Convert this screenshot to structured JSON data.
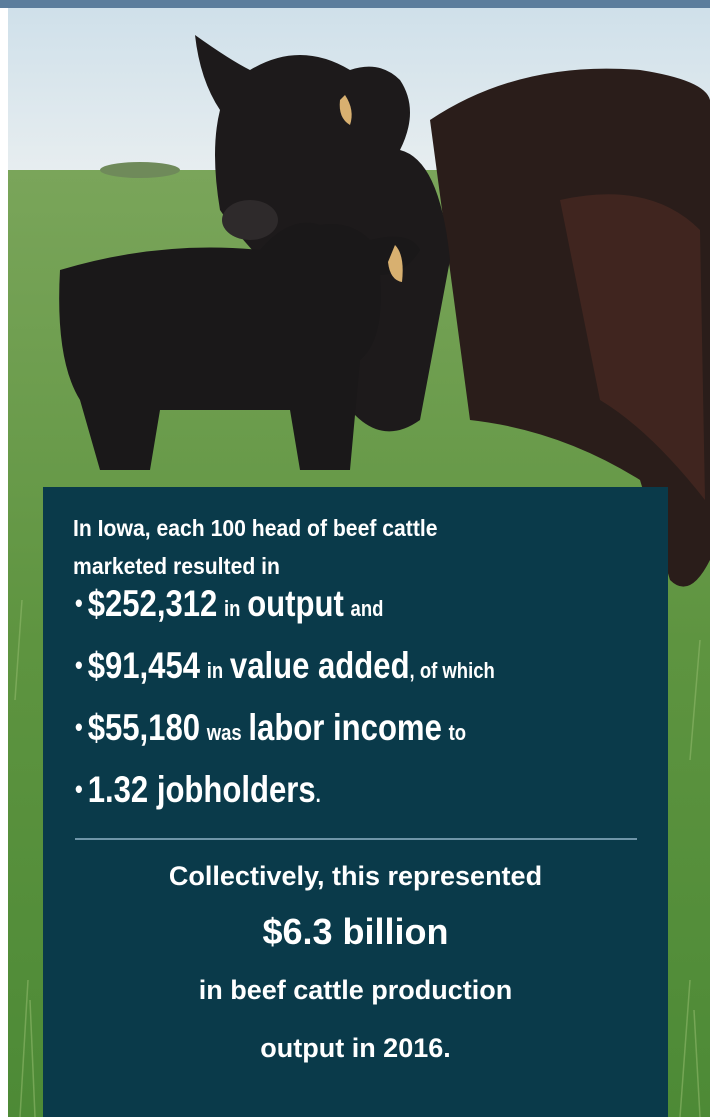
{
  "intro": "In Iowa, each 100 head of beef cattle marketed resulted in",
  "bullets": [
    [
      "$252,312",
      "in",
      "output",
      "and"
    ],
    [
      "$91,454",
      "in",
      "value added",
      ", of which"
    ],
    [
      "$55,180",
      "was",
      "labor income",
      "to"
    ],
    [
      "1.32 jobholders",
      "."
    ]
  ],
  "closing": [
    "Collectively, this represented",
    "$6.3 billion",
    "in beef cattle production",
    "output in 2016."
  ]
}
